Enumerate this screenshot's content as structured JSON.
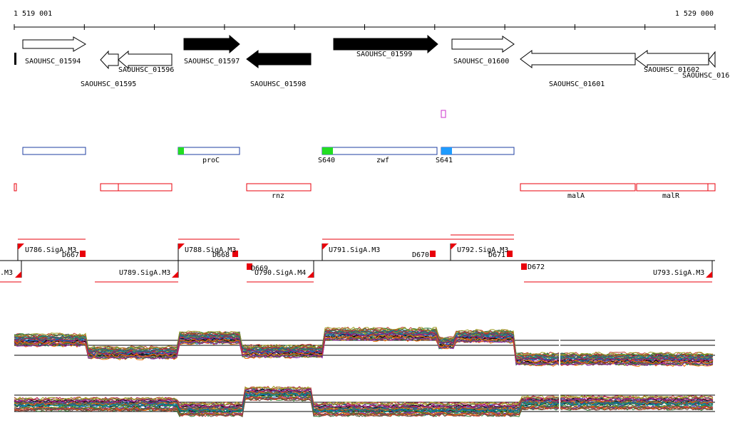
{
  "coords": {
    "start": "1 519 001",
    "end": "1 529 000"
  },
  "genes": [
    {
      "name": "SAOUHSC_01594",
      "strand": "+",
      "fill": "white"
    },
    {
      "name": "SAOUHSC_01595",
      "strand": "-",
      "fill": "white"
    },
    {
      "name": "SAOUHSC_01596",
      "strand": "-",
      "fill": "white"
    },
    {
      "name": "SAOUHSC_01597",
      "strand": "+",
      "fill": "black"
    },
    {
      "name": "SAOUHSC_01598",
      "strand": "-",
      "fill": "black"
    },
    {
      "name": "SAOUHSC_01599",
      "strand": "+",
      "fill": "black"
    },
    {
      "name": "SAOUHSC_01600",
      "strand": "+",
      "fill": "white"
    },
    {
      "name": "SAOUHSC_01601",
      "strand": "-",
      "fill": "white"
    },
    {
      "name": "SAOUHSC_01602",
      "strand": "-",
      "fill": "white"
    },
    {
      "name": "SAOUHSC_016",
      "strand": "-",
      "fill": "white"
    }
  ],
  "blue_track": [
    "proC",
    "S640",
    "zwf",
    "S641"
  ],
  "red_track": [
    "rnz",
    "malA",
    "malR"
  ],
  "segments_top": [
    "U786.SigA.M3",
    "D667",
    "U788.SigA.M3",
    "D668",
    "U791.SigA.M3",
    "D670",
    "U792.SigA.M3",
    "D671"
  ],
  "segments_bottom": [
    ".M3",
    "U789.SigA.M3",
    "D669",
    "U790.SigA.M4",
    "D672",
    "U793.SigA.M3"
  ],
  "colors": {
    "red": "#e8000b",
    "blue": "#1f3fa0",
    "green": "#22dd22",
    "cyan": "#1e9bff",
    "magenta": "#cc33cc"
  }
}
